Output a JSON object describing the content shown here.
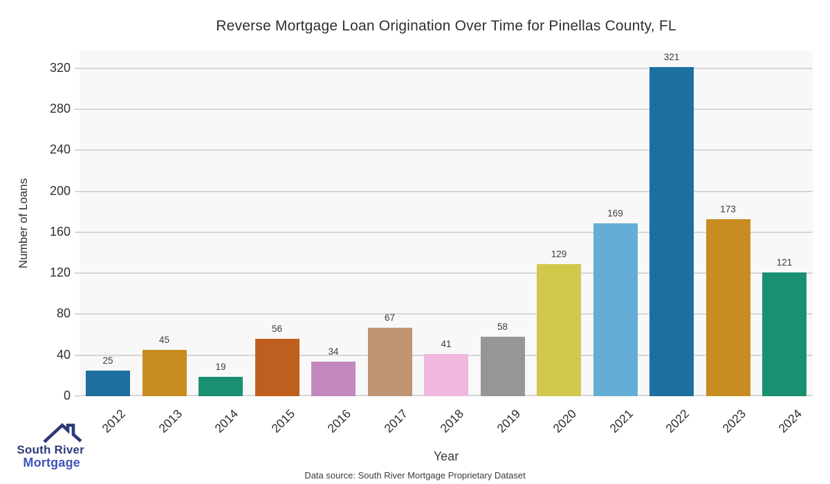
{
  "chart_data": {
    "type": "bar",
    "title": "Reverse Mortgage Loan Origination Over Time for Pinellas County, FL",
    "xlabel": "Year",
    "ylabel": "Number of Loans",
    "categories": [
      "2012",
      "2013",
      "2014",
      "2015",
      "2016",
      "2017",
      "2018",
      "2019",
      "2020",
      "2021",
      "2022",
      "2023",
      "2024"
    ],
    "values": [
      25,
      45,
      19,
      56,
      34,
      67,
      41,
      58,
      129,
      169,
      321,
      173,
      121
    ],
    "bar_colors": [
      "#1d6f9f",
      "#c88d20",
      "#1b9071",
      "#bf5f1f",
      "#c287bd",
      "#bf9573",
      "#f0b8de",
      "#969696",
      "#d2c84c",
      "#64aed6",
      "#1d6f9f",
      "#c88d20",
      "#1b9071"
    ],
    "value_labels": [
      "25",
      "45",
      "19",
      "56",
      "34",
      "67",
      "41",
      "58",
      "129",
      "169",
      "321",
      "173",
      "121"
    ],
    "yticks": [
      0,
      40,
      80,
      120,
      160,
      200,
      240,
      280,
      320
    ],
    "ylim": [
      0,
      337.5
    ],
    "grid": "horizontal",
    "legend": "none",
    "plot_bg": "#f8f8f8",
    "gridline_color": "#d6d6d6"
  },
  "footer": {
    "source": "Data source: South River Mortgage Proprietary Dataset"
  },
  "logo": {
    "line1": "South River",
    "line2": "Mortgage",
    "line1_color": "#2d3a76",
    "line2_color": "#4053b8",
    "roof_color": "#2d3a76"
  }
}
